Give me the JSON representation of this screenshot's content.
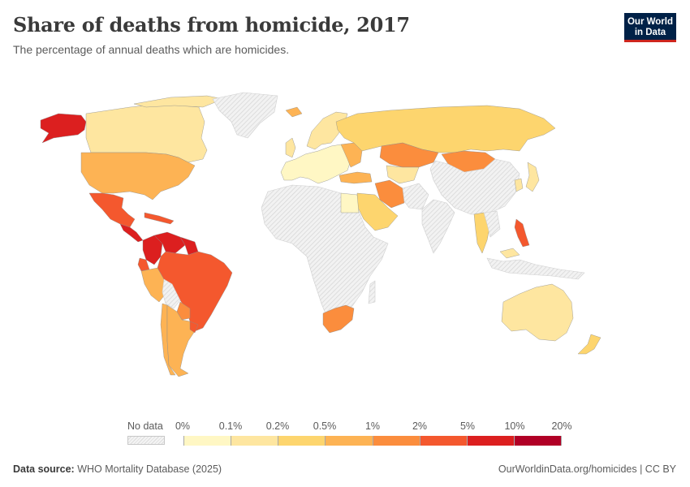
{
  "header": {
    "title": "Share of deaths from homicide, 2017",
    "subtitle": "The percentage of annual deaths which are homicides."
  },
  "logo": {
    "line1": "Our World",
    "line2": "in Data",
    "bg": "#002147",
    "accent": "#ce261e"
  },
  "legend": {
    "no_data_label": "No data",
    "ticks": [
      "0%",
      "0.1%",
      "0.2%",
      "0.5%",
      "1%",
      "2%",
      "5%",
      "10%",
      "20%"
    ],
    "colors": [
      "#fff7c4",
      "#fee6a0",
      "#fdd56e",
      "#fdb354",
      "#fb8d3d",
      "#f4582e",
      "#dc1f1f",
      "#b10026"
    ],
    "no_data_color": "#ebebeb"
  },
  "footer": {
    "source_label": "Data source:",
    "source_text": "WHO Mortality Database (2025)",
    "link_text": "OurWorldinData.org/homicides | CC BY"
  },
  "chart_data": {
    "type": "choropleth",
    "title": "Share of deaths from homicide, 2017",
    "subtitle": "The percentage of annual deaths which are homicides.",
    "bins": [
      {
        "range": "0%–0.1%",
        "color": "#fff7c4"
      },
      {
        "range": "0.1%–0.2%",
        "color": "#fee6a0"
      },
      {
        "range": "0.2%–0.5%",
        "color": "#fdd56e"
      },
      {
        "range": "0.5%–1%",
        "color": "#fdb354"
      },
      {
        "range": "1%–2%",
        "color": "#fb8d3d"
      },
      {
        "range": "2%–5%",
        "color": "#f4582e"
      },
      {
        "range": "5%–10%",
        "color": "#dc1f1f"
      },
      {
        "range": "10%–20%",
        "color": "#b10026"
      }
    ],
    "regions": [
      {
        "name": "Canada",
        "bin": 1
      },
      {
        "name": "United States",
        "bin": 3
      },
      {
        "name": "Mexico",
        "bin": 5
      },
      {
        "name": "Central America",
        "bin": 6
      },
      {
        "name": "Venezuela",
        "bin": 6
      },
      {
        "name": "Colombia",
        "bin": 6
      },
      {
        "name": "Guyana",
        "bin": 5
      },
      {
        "name": "Brazil",
        "bin": 5
      },
      {
        "name": "Peru",
        "bin": 3
      },
      {
        "name": "Argentina",
        "bin": 3
      },
      {
        "name": "Paraguay",
        "bin": 4
      },
      {
        "name": "Chile",
        "bin": 3
      },
      {
        "name": "Greenland",
        "bin": -1
      },
      {
        "name": "Europe",
        "bin": 0
      },
      {
        "name": "Russia",
        "bin": 2
      },
      {
        "name": "Kazakhstan",
        "bin": 4
      },
      {
        "name": "Mongolia",
        "bin": 4
      },
      {
        "name": "Iran",
        "bin": 4
      },
      {
        "name": "Saudi Arabia",
        "bin": 2
      },
      {
        "name": "Egypt",
        "bin": 0
      },
      {
        "name": "Africa",
        "bin": -1
      },
      {
        "name": "South Africa",
        "bin": 4
      },
      {
        "name": "China",
        "bin": -1
      },
      {
        "name": "India",
        "bin": -1
      },
      {
        "name": "Japan",
        "bin": 1
      },
      {
        "name": "Thailand",
        "bin": 2
      },
      {
        "name": "Philippines",
        "bin": 5
      },
      {
        "name": "Australia",
        "bin": 1
      },
      {
        "name": "New Zealand",
        "bin": 2
      }
    ]
  }
}
